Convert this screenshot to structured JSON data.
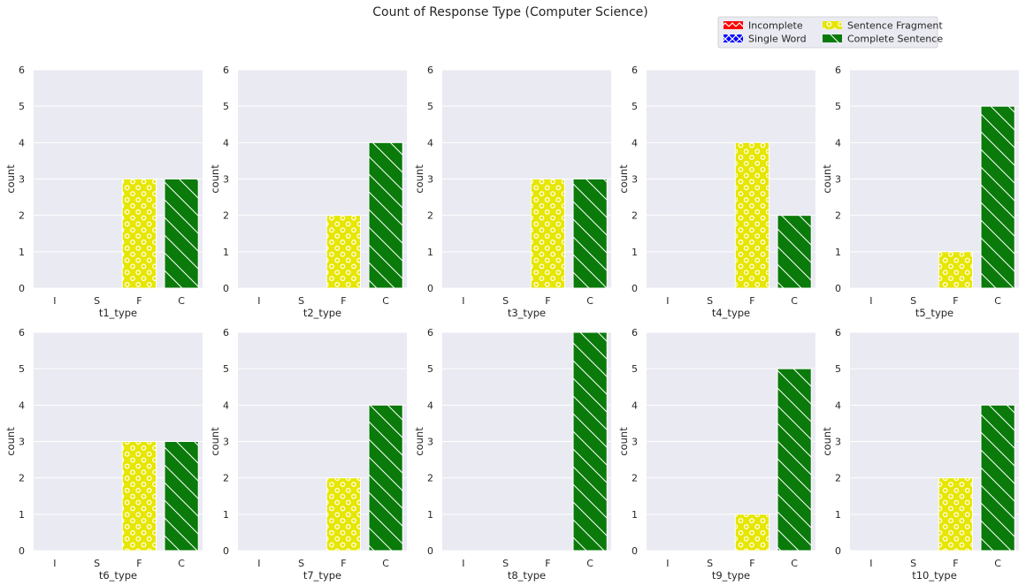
{
  "chart_data": {
    "type": "bar",
    "title": "Count of Response Type (Computer Science)",
    "categories": [
      "I",
      "S",
      "F",
      "C"
    ],
    "ylabel": "count",
    "ylim": [
      0,
      6
    ],
    "yticks": [
      0,
      1,
      2,
      3,
      4,
      5,
      6
    ],
    "grid": true,
    "legend_placement": "top-right",
    "legend": [
      {
        "label": "Incomplete",
        "color": "#ff0000",
        "hatch": "zigzag"
      },
      {
        "label": "Single Word",
        "color": "#0000ff",
        "hatch": "x"
      },
      {
        "label": "Sentence Fragment",
        "color": "#e6e600",
        "hatch": "circles"
      },
      {
        "label": "Complete Sentence",
        "color": "#0a7a0a",
        "hatch": "backslash"
      }
    ],
    "panels": [
      {
        "xlabel": "t1_type",
        "values": [
          0,
          0,
          3,
          3
        ]
      },
      {
        "xlabel": "t2_type",
        "values": [
          0,
          0,
          2,
          4
        ]
      },
      {
        "xlabel": "t3_type",
        "values": [
          0,
          0,
          3,
          3
        ]
      },
      {
        "xlabel": "t4_type",
        "values": [
          0,
          0,
          4,
          2
        ]
      },
      {
        "xlabel": "t5_type",
        "values": [
          0,
          0,
          1,
          5
        ]
      },
      {
        "xlabel": "t6_type",
        "values": [
          0,
          0,
          3,
          3
        ]
      },
      {
        "xlabel": "t7_type",
        "values": [
          0,
          0,
          2,
          4
        ]
      },
      {
        "xlabel": "t8_type",
        "values": [
          0,
          0,
          0,
          6
        ]
      },
      {
        "xlabel": "t9_type",
        "values": [
          0,
          0,
          1,
          5
        ]
      },
      {
        "xlabel": "t10_type",
        "values": [
          0,
          0,
          2,
          4
        ]
      }
    ]
  }
}
